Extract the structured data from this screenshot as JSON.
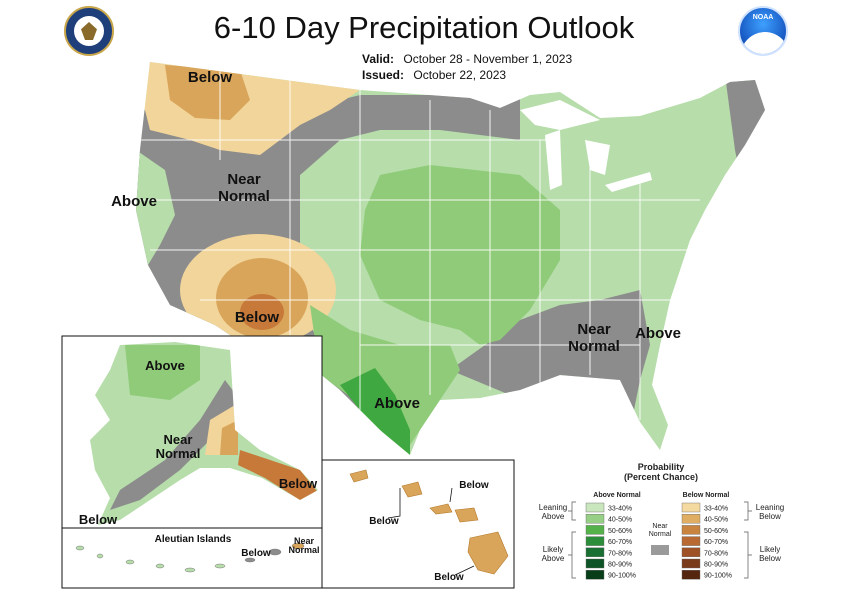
{
  "title": "6-10 Day Precipitation Outlook",
  "valid": {
    "label": "Valid:",
    "value": "October 28 - November 1, 2023"
  },
  "issued": {
    "label": "Issued:",
    "value": "October 22, 2023"
  },
  "logos": {
    "left": "department-of-commerce-seal",
    "right": "noaa-logo",
    "noaa_text": "NOAA"
  },
  "colors": {
    "gray": "#8c8c8c",
    "above_33_40": "#b6ddaa",
    "above_40_50": "#8fcb79",
    "above_50_60": "#3fa840",
    "below_33_40": "#f2d59a",
    "below_40_50": "#d9a55a",
    "below_50_60": "#c7793a",
    "outline": "#ffffff"
  },
  "map_labels": {
    "nw_below": "Below",
    "west_above": "Above",
    "near_normal_west": "Near\nNormal",
    "sw_below": "Below",
    "texas_above": "Above",
    "se_near_normal": "Near\nNormal",
    "east_above": "Above"
  },
  "alaska": {
    "above": "Above",
    "near_normal": "Near\nNormal",
    "below_se": "Below",
    "below_sw": "Below",
    "aleutian_title": "Aleutian Islands",
    "aleutian_below": "Below",
    "aleutian_near": "Near\nNormal"
  },
  "hawaii": {
    "below_1": "Below",
    "below_2": "Below",
    "below_3": "Below"
  },
  "legend": {
    "title": "Probability\n(Percent Chance)",
    "above_header": "Above Normal",
    "below_header": "Below Normal",
    "leaning_above": "Leaning\nAbove",
    "likely_above": "Likely\nAbove",
    "leaning_below": "Leaning\nBelow",
    "likely_below": "Likely\nBelow",
    "near_normal": "Near\nNormal",
    "above_bins": [
      {
        "label": "33-40%",
        "color": "#c9e6bd"
      },
      {
        "label": "40-50%",
        "color": "#96cf85"
      },
      {
        "label": "50-60%",
        "color": "#55b24b"
      },
      {
        "label": "60-70%",
        "color": "#2c8e3a"
      },
      {
        "label": "70-80%",
        "color": "#1a7032"
      },
      {
        "label": "80-90%",
        "color": "#0f5426"
      },
      {
        "label": "90-100%",
        "color": "#083d1a"
      }
    ],
    "below_bins": [
      {
        "label": "33-40%",
        "color": "#f4d9a0"
      },
      {
        "label": "40-50%",
        "color": "#dfae62"
      },
      {
        "label": "50-60%",
        "color": "#c9843f"
      },
      {
        "label": "60-70%",
        "color": "#b86a32"
      },
      {
        "label": "70-80%",
        "color": "#9e5226"
      },
      {
        "label": "80-90%",
        "color": "#7a3b1b"
      },
      {
        "label": "90-100%",
        "color": "#54260f"
      }
    ],
    "near_color": "#9a9a9a"
  }
}
